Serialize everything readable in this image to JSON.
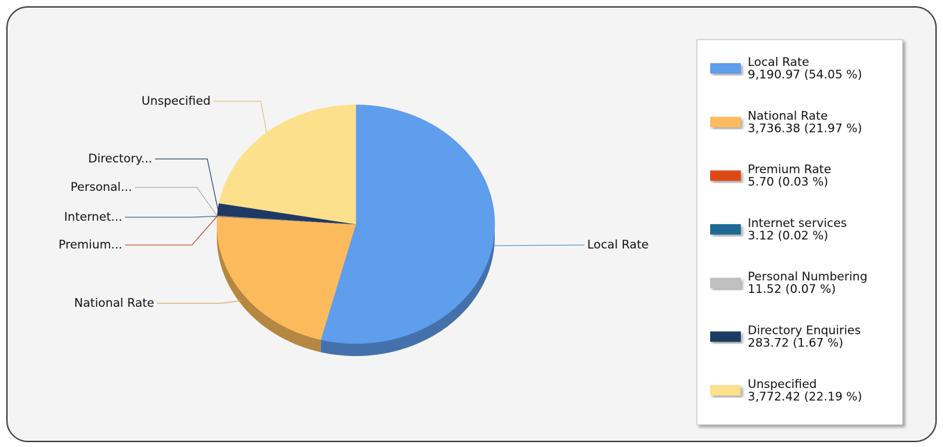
{
  "chart_data": {
    "type": "pie",
    "categories": [
      "Local Rate",
      "National Rate",
      "Premium Rate",
      "Internet services",
      "Personal Numbering",
      "Directory Enquiries",
      "Unspecified"
    ],
    "slice_labels": [
      "Local Rate",
      "National Rate",
      "Premium...",
      "Internet...",
      "Personal...",
      "Directory...",
      "Unspecified"
    ],
    "values": [
      9190.97,
      3736.38,
      5.7,
      3.12,
      11.52,
      283.72,
      3772.42
    ],
    "value_labels": [
      "9,190.97 (54.05 %)",
      "3,736.38 (21.97 %)",
      "5.70 (0.03 %)",
      "3.12 (0.02 %)",
      "11.52 (0.07 %)",
      "283.72 (1.67 %)",
      "3,772.42 (22.19 %)"
    ],
    "colors": [
      "#5f9ded",
      "#fbbb5c",
      "#dd4814",
      "#1f6b94",
      "#c0c0c0",
      "#1e3a64",
      "#fde08c"
    ],
    "legend": "right"
  }
}
